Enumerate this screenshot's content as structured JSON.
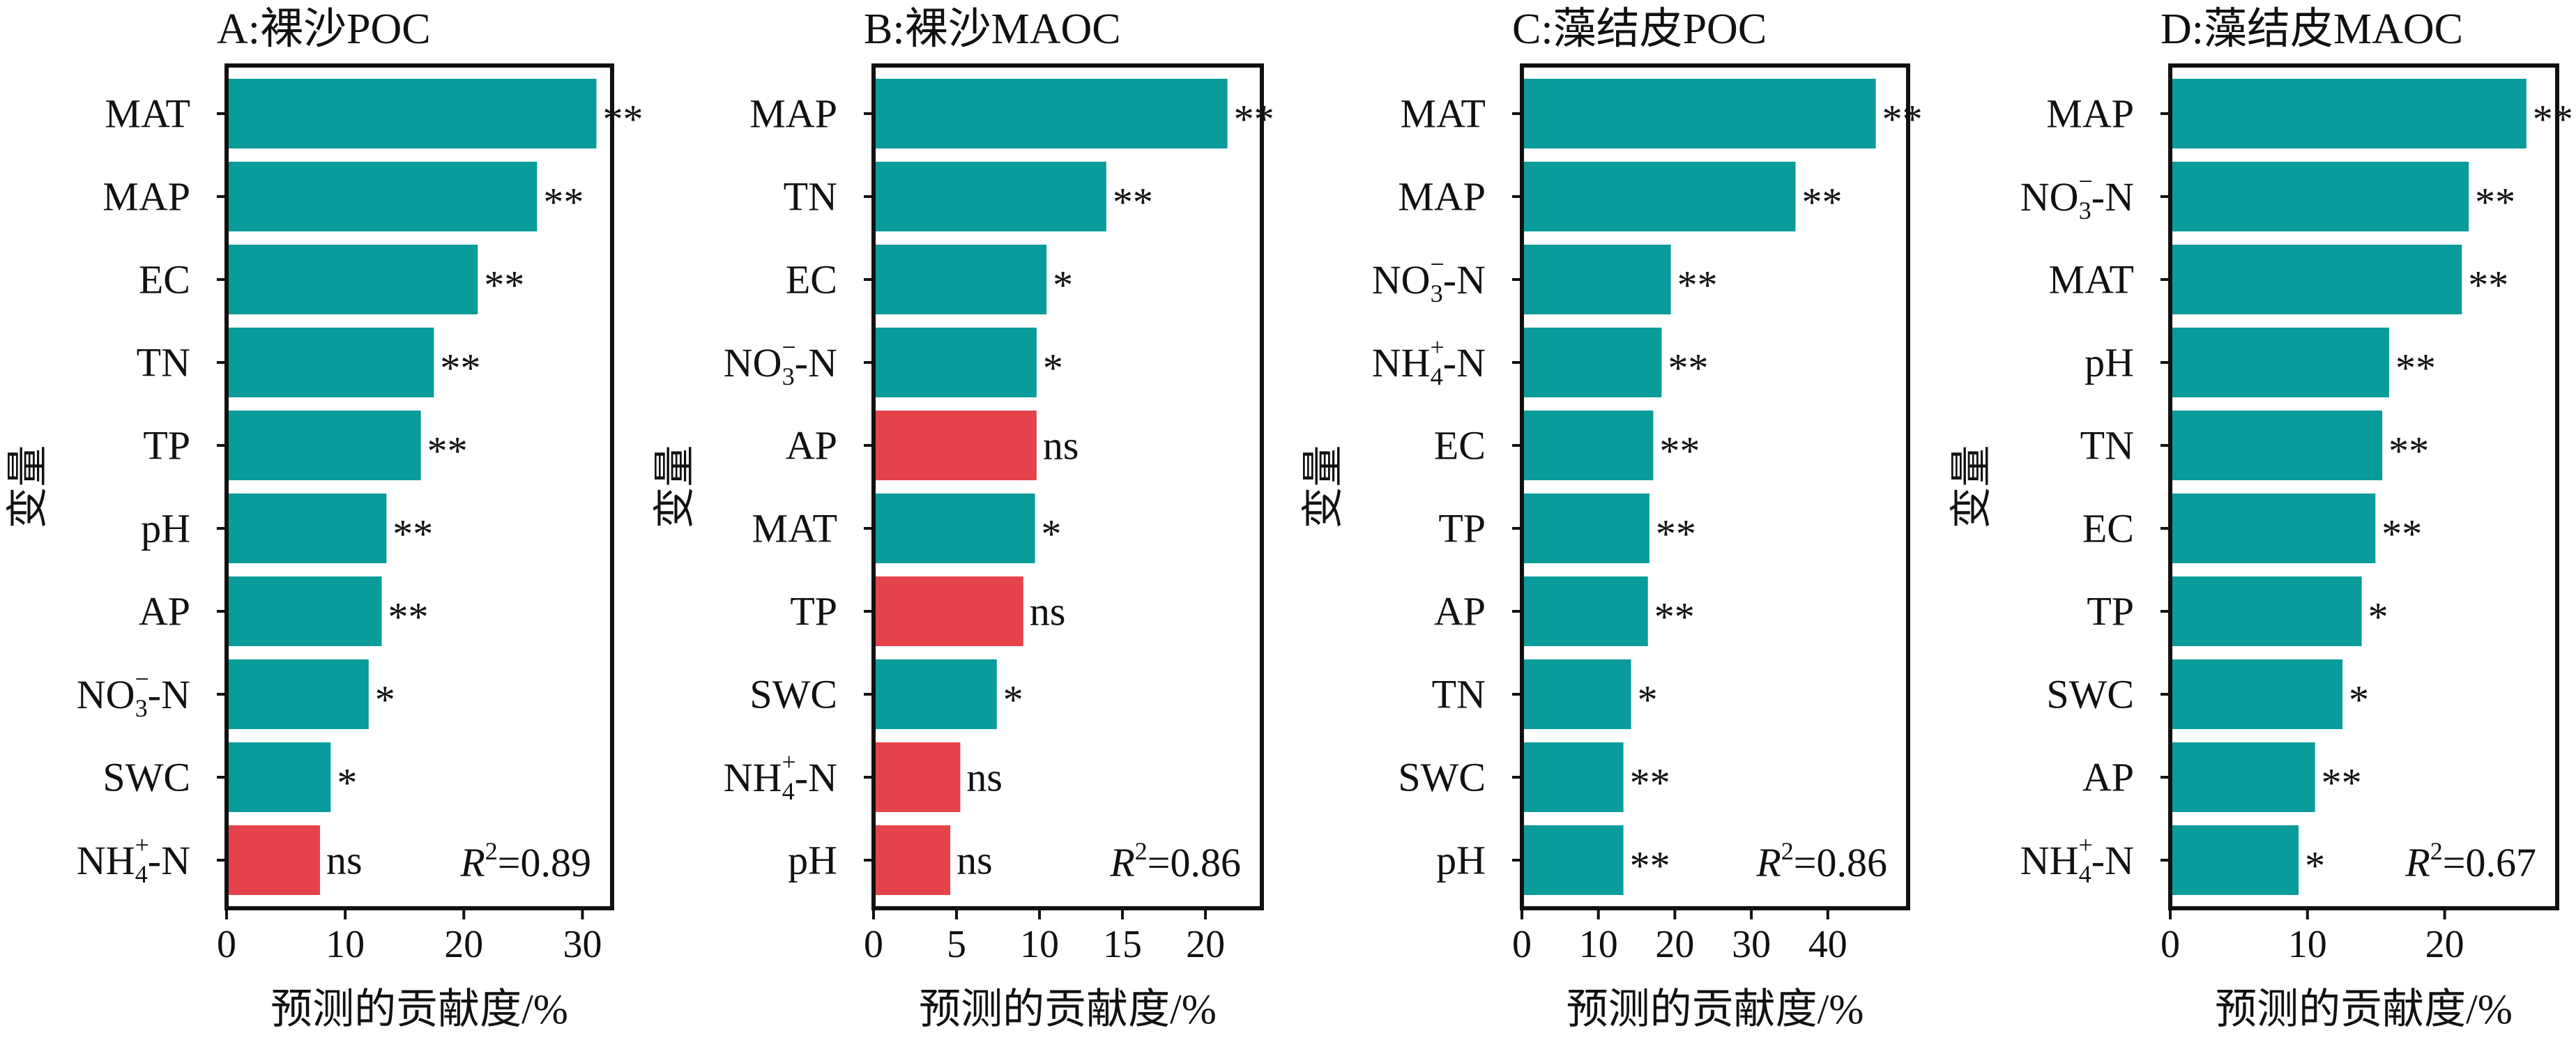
{
  "colors": {
    "significant": "#0a9b9b",
    "not_significant": "#e5434b",
    "axis": "#111111",
    "background": "#ffffff"
  },
  "chart_data": [
    {
      "type": "bar",
      "orientation": "horizontal",
      "title": "A:裸沙POC",
      "xlabel": "预测的贡献度/%",
      "ylabel": "变量",
      "xlim": [
        0,
        32.5
      ],
      "xticks": [
        0,
        10,
        20,
        30
      ],
      "r2_label": "=0.89",
      "categories": [
        "MAT",
        "MAP",
        "EC",
        "TN",
        "TP",
        "pH",
        "AP",
        "NO3-N",
        "SWC",
        "NH4-N"
      ],
      "values": [
        31,
        26,
        21,
        17.3,
        16.2,
        13.3,
        12.9,
        11.8,
        8.6,
        7.7
      ],
      "significance": [
        "**",
        "**",
        "**",
        "**",
        "**",
        "**",
        "**",
        "*",
        "*",
        "ns"
      ]
    },
    {
      "type": "bar",
      "orientation": "horizontal",
      "title": "B:裸沙MAOC",
      "xlabel": "预测的贡献度/%",
      "ylabel": "变量",
      "xlim": [
        0,
        23.4
      ],
      "xticks": [
        0,
        5,
        10,
        15,
        20
      ],
      "r2_label": "=0.86",
      "categories": [
        "MAP",
        "TN",
        "EC",
        "NO3-N",
        "AP",
        "MAT",
        "TP",
        "SWC",
        "NH4-N",
        "pH"
      ],
      "values": [
        21.2,
        13.9,
        10.3,
        9.7,
        9.7,
        9.6,
        8.9,
        7.3,
        5.1,
        4.5
      ],
      "significance": [
        "**",
        "**",
        "*",
        "*",
        "ns",
        "*",
        "ns",
        "*",
        "ns",
        "ns"
      ]
    },
    {
      "type": "bar",
      "orientation": "horizontal",
      "title": "C:藻结皮POC",
      "xlabel": "预测的贡献度/%",
      "ylabel": "变量",
      "xlim": [
        0,
        50.5
      ],
      "xticks": [
        0,
        10,
        20,
        30,
        40
      ],
      "r2_label": "=0.86",
      "categories": [
        "MAT",
        "MAP",
        "NO3-N",
        "NH4-N",
        "EC",
        "TP",
        "AP",
        "TN",
        "SWC",
        "pH"
      ],
      "values": [
        46,
        35.5,
        19.2,
        18,
        16.9,
        16.4,
        16.2,
        14,
        13,
        13
      ],
      "significance": [
        "**",
        "**",
        "**",
        "**",
        "**",
        "**",
        "**",
        "*",
        "**",
        "**"
      ]
    },
    {
      "type": "bar",
      "orientation": "horizontal",
      "title": "D:藻结皮MAOC",
      "xlabel": "预测的贡献度/%",
      "ylabel": "变量",
      "xlim": [
        0,
        28.2
      ],
      "xticks": [
        0,
        10,
        20
      ],
      "r2_label": "=0.67",
      "categories": [
        "MAP",
        "NO3-N",
        "MAT",
        "pH",
        "TN",
        "EC",
        "TP",
        "SWC",
        "AP",
        "NH4-N"
      ],
      "values": [
        25.8,
        21.6,
        21.1,
        15.8,
        15.3,
        14.8,
        13.8,
        12.4,
        10.4,
        9.2
      ],
      "significance": [
        "**",
        "**",
        "**",
        "**",
        "**",
        "**",
        "*",
        "*",
        "**",
        "*"
      ]
    }
  ]
}
